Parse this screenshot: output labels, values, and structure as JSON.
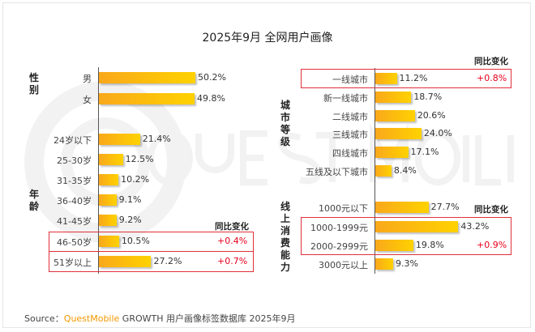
{
  "title": "2025年9月 全网用户画像",
  "watermark": "QUESTMOBILE",
  "source": {
    "prefix": "Source：",
    "brand": "QuestMobile",
    "text": " GROWTH 用户画像标签数据库 2025年9月"
  },
  "chart_data": [
    {
      "type": "bar",
      "orientation": "horizontal",
      "group": "性别",
      "categories": [
        "男",
        "女"
      ],
      "values": [
        50.2,
        49.8
      ],
      "labels": [
        "50.2%",
        "49.8%"
      ]
    },
    {
      "type": "bar",
      "orientation": "horizontal",
      "group": "年龄",
      "categories": [
        "24岁以下",
        "25-30岁",
        "31-35岁",
        "36-40岁",
        "41-45岁",
        "46-50岁",
        "51岁以上"
      ],
      "values": [
        21.4,
        12.5,
        10.2,
        9.1,
        9.2,
        10.5,
        27.2
      ],
      "labels": [
        "21.4%",
        "12.5%",
        "10.2%",
        "9.1%",
        "9.2%",
        "10.5%",
        "27.2%"
      ],
      "yoy_header": "同比变化",
      "yoy": {
        "46-50岁": "+0.4%",
        "51岁以上": "+0.7%"
      }
    },
    {
      "type": "bar",
      "orientation": "horizontal",
      "group": "城市等级",
      "categories": [
        "一线城市",
        "新一线城市",
        "二线城市",
        "三线城市",
        "四线城市",
        "五线及以下城市"
      ],
      "values": [
        11.2,
        18.7,
        20.6,
        24.0,
        17.1,
        8.4
      ],
      "labels": [
        "11.2%",
        "18.7%",
        "20.6%",
        "24.0%",
        "17.1%",
        "8.4%"
      ],
      "yoy_header": "同比变化",
      "yoy": {
        "一线城市": "+0.8%"
      }
    },
    {
      "type": "bar",
      "orientation": "horizontal",
      "group": "线上消费能力",
      "categories": [
        "1000元以下",
        "1000-1999元",
        "2000-2999元",
        "3000元以上"
      ],
      "values": [
        27.7,
        43.2,
        19.8,
        9.3
      ],
      "labels": [
        "27.7%",
        "43.2%",
        "19.8%",
        "9.3%"
      ],
      "yoy_header": "同比变化",
      "yoy": {
        "1000-1999元/2000-2999元": "+0.9%"
      }
    }
  ],
  "colors": {
    "bar_start": "#f9a81b",
    "bar_end": "#ffd200",
    "highlight": "#e0303a",
    "yoy": "#e8001c",
    "brand": "#f39800"
  }
}
